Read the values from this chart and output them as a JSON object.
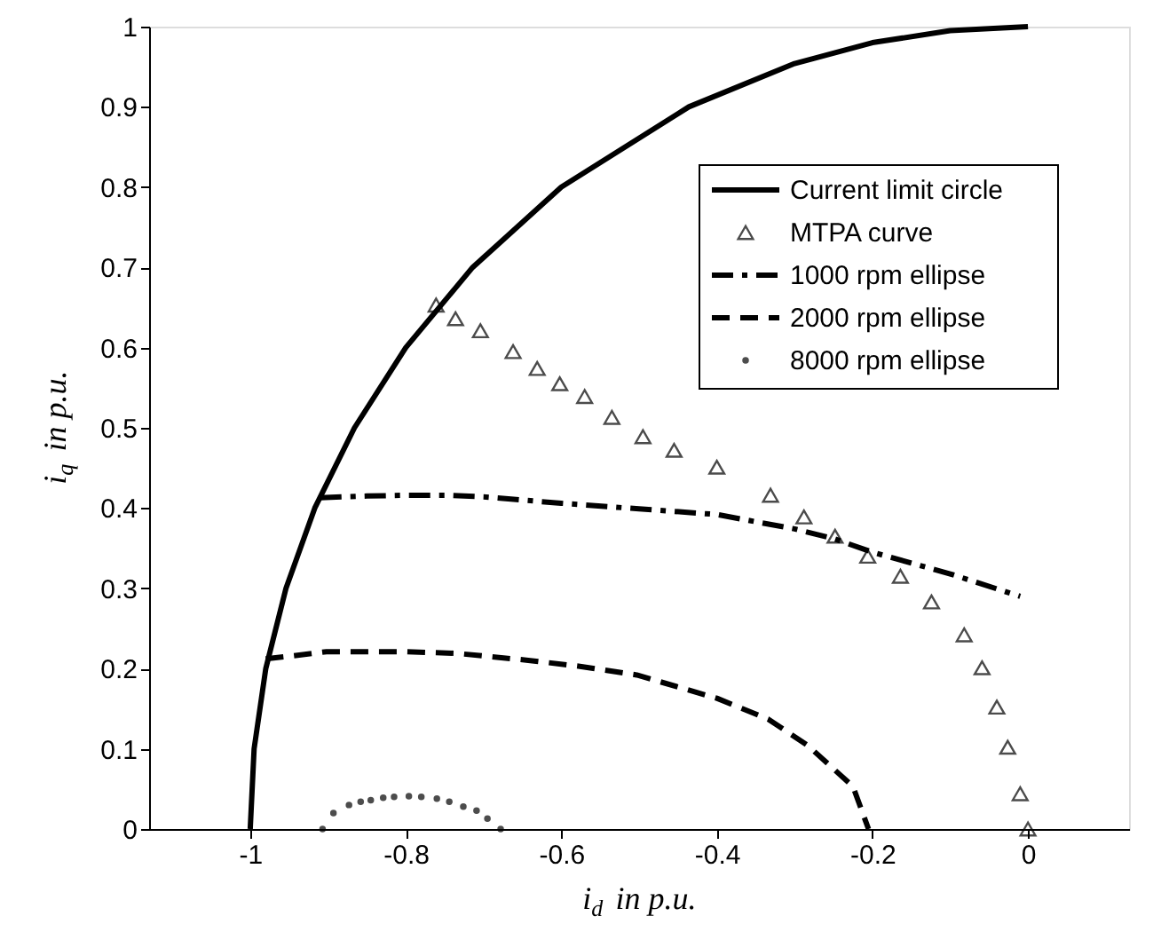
{
  "chart_data": {
    "type": "line",
    "xlabel": "i$_{d}$ in p.u.",
    "ylabel": "i$_{q}$ in p.u.",
    "xlim": [
      -1.13,
      0.13
    ],
    "ylim": [
      0,
      1
    ],
    "xticks": [
      -1,
      -0.8,
      -0.6,
      -0.4,
      -0.2,
      0
    ],
    "yticks": [
      0,
      0.1,
      0.2,
      0.3,
      0.4,
      0.5,
      0.6,
      0.7,
      0.8,
      0.9,
      1
    ],
    "grid": false,
    "legend": "top right",
    "series": [
      {
        "name": "Current limit circle",
        "line_style": "solid",
        "color": "#000000",
        "x": [
          -1,
          -0.995,
          -0.98,
          -0.954,
          -0.917,
          -0.866,
          -0.8,
          -0.714,
          -0.6,
          -0.436,
          -0.3,
          -0.2,
          -0.1,
          0
        ],
        "values": [
          0,
          0.1,
          0.2,
          0.3,
          0.4,
          0.5,
          0.6,
          0.7,
          0.8,
          0.9,
          0.954,
          0.98,
          0.995,
          1
        ]
      },
      {
        "name": "MTPA curve",
        "type": "scatter",
        "marker": "triangle",
        "color": "#000000",
        "x": [
          -0.761,
          -0.736,
          -0.704,
          -0.662,
          -0.631,
          -0.602,
          -0.57,
          -0.535,
          -0.495,
          -0.455,
          -0.4,
          -0.331,
          -0.288,
          -0.248,
          -0.206,
          -0.164,
          -0.124,
          -0.082,
          -0.059,
          -0.04,
          -0.026,
          -0.01,
          0
        ],
        "values": [
          0.653,
          0.636,
          0.621,
          0.595,
          0.574,
          0.555,
          0.539,
          0.513,
          0.489,
          0.472,
          0.451,
          0.416,
          0.389,
          0.365,
          0.34,
          0.315,
          0.283,
          0.242,
          0.201,
          0.152,
          0.102,
          0.044,
          0
        ]
      },
      {
        "name": "1000 rpm ellipse",
        "line_style": "dashdot",
        "color": "#000000",
        "x": [
          -0.91,
          -0.85,
          -0.8,
          -0.75,
          -0.7,
          -0.6,
          -0.5,
          -0.4,
          -0.3,
          -0.25,
          -0.2,
          -0.1,
          -0.01
        ],
        "values": [
          0.413,
          0.415,
          0.416,
          0.416,
          0.414,
          0.406,
          0.399,
          0.392,
          0.374,
          0.362,
          0.345,
          0.318,
          0.29
        ]
      },
      {
        "name": "2000 rpm ellipse",
        "line_style": "dashed",
        "color": "#000000",
        "x": [
          -0.98,
          -0.953,
          -0.902,
          -0.8,
          -0.735,
          -0.64,
          -0.578,
          -0.503,
          -0.4,
          -0.334,
          -0.283,
          -0.225,
          -0.205
        ],
        "values": [
          0.212,
          0.215,
          0.221,
          0.221,
          0.219,
          0.21,
          0.203,
          0.192,
          0.163,
          0.137,
          0.104,
          0.053,
          0
        ]
      },
      {
        "name": "8000 rpm ellipse",
        "type": "scatter",
        "marker": "circle",
        "color": "#000000",
        "x": [
          -0.907,
          -0.893,
          -0.873,
          -0.858,
          -0.845,
          -0.829,
          -0.815,
          -0.796,
          -0.78,
          -0.76,
          -0.744,
          -0.726,
          -0.709,
          -0.695,
          -0.678
        ],
        "values": [
          0,
          0.02,
          0.03,
          0.034,
          0.036,
          0.039,
          0.04,
          0.041,
          0.04,
          0.038,
          0.034,
          0.028,
          0.023,
          0.013,
          0
        ]
      }
    ]
  }
}
